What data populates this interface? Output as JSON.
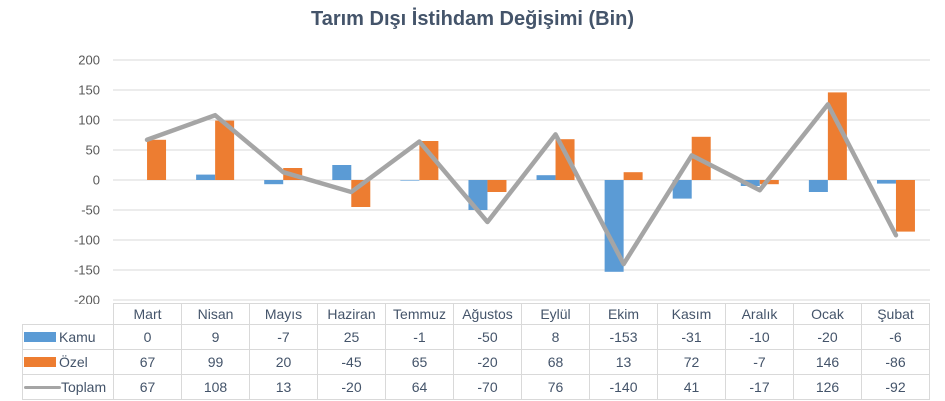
{
  "title": "Tarım Dışı İstihdam Değişimi (Bin)",
  "colors": {
    "kamu": "#5B9BD5",
    "ozel": "#ED7D31",
    "toplam": "#A5A5A5",
    "gridline": "#D9D9D9",
    "axis_text": "#595959",
    "title_text": "#44546A",
    "table_border": "#D9D9D9",
    "table_text": "#44546A"
  },
  "chart_data": {
    "type": "bar",
    "subtype": "combo-clustered-bar-with-line",
    "title": "Tarım Dışı İstihdam Değişimi (Bin)",
    "categories": [
      "Mart",
      "Nisan",
      "Mayıs",
      "Haziran",
      "Temmuz",
      "Ağustos",
      "Eylül",
      "Ekim",
      "Kasım",
      "Aralık",
      "Ocak",
      "Şubat"
    ],
    "series": [
      {
        "name": "Kamu",
        "type": "bar",
        "color": "#5B9BD5",
        "values": [
          0,
          9,
          -7,
          25,
          -1,
          -50,
          8,
          -153,
          -31,
          -10,
          -20,
          -6
        ]
      },
      {
        "name": "Özel",
        "type": "bar",
        "color": "#ED7D31",
        "values": [
          67,
          99,
          20,
          -45,
          65,
          -20,
          68,
          13,
          72,
          -7,
          146,
          -86
        ]
      },
      {
        "name": "Toplam",
        "type": "line",
        "color": "#A5A5A5",
        "values": [
          67,
          108,
          13,
          -20,
          64,
          -70,
          76,
          -140,
          41,
          -17,
          126,
          -92
        ]
      }
    ],
    "xlabel": "",
    "ylabel": "",
    "ylim": [
      -200,
      200
    ],
    "y_ticks": [
      200,
      150,
      100,
      50,
      0,
      -50,
      -100,
      -150,
      -200
    ],
    "grid": true,
    "legend_position": "data-table-left"
  }
}
